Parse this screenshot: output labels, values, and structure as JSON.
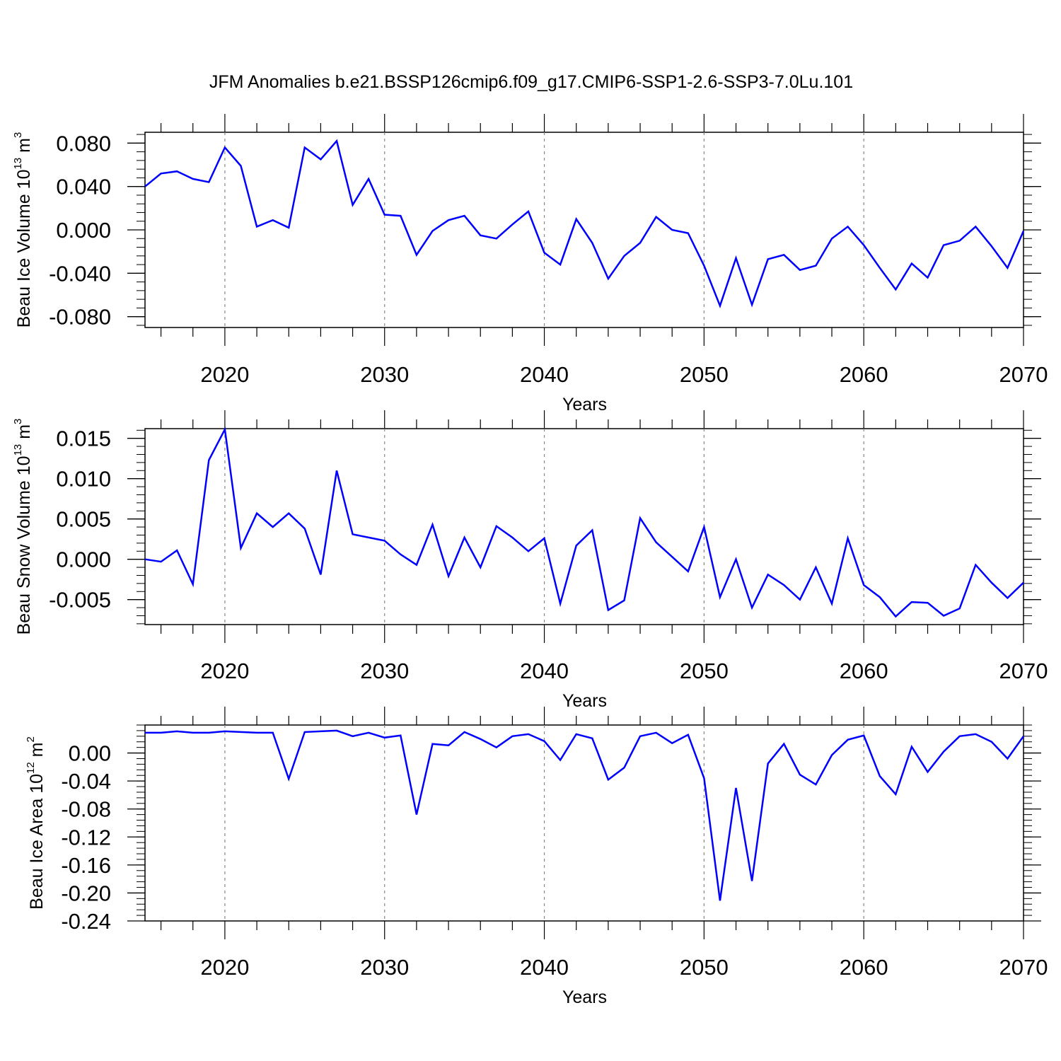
{
  "title": "JFM Anomalies b.e21.BSSP126cmip6.f09_g17.CMIP6-SSP1-2.6-SSP3-7.0Lu.101",
  "line_color": "#0000ff",
  "chart_data": [
    {
      "type": "line",
      "title": "JFM Anomalies b.e21.BSSP126cmip6.f09_g17.CMIP6-SSP1-2.6-SSP3-7.0Lu.101",
      "xlabel": "Years",
      "ylabel_main": "Beau Ice Volume 10",
      "ylabel_exp": "13",
      "ylabel_unit": " m",
      "ylabel_unit_exp": "3",
      "xlim": [
        2015,
        2070
      ],
      "ylim": [
        -0.09,
        0.09
      ],
      "x_ticks": [
        "2020",
        "2030",
        "2040",
        "2050",
        "2060",
        "2070"
      ],
      "y_ticks": [
        "0.080",
        "0.040",
        "0.000",
        "-0.040",
        "-0.080"
      ],
      "y_tick_values": [
        0.08,
        0.04,
        0.0,
        -0.04,
        -0.08
      ],
      "grid": "dashed vertical at decades",
      "series": [
        {
          "name": "Beau Ice Volume",
          "x": [
            2015,
            2016,
            2017,
            2018,
            2019,
            2020,
            2021,
            2022,
            2023,
            2024,
            2025,
            2026,
            2027,
            2028,
            2029,
            2030,
            2031,
            2032,
            2033,
            2034,
            2035,
            2036,
            2037,
            2038,
            2039,
            2040,
            2041,
            2042,
            2043,
            2044,
            2045,
            2046,
            2047,
            2048,
            2049,
            2050,
            2051,
            2052,
            2053,
            2054,
            2055,
            2056,
            2057,
            2058,
            2059,
            2060,
            2061,
            2062,
            2063,
            2064,
            2065,
            2066,
            2067,
            2068,
            2069,
            2070
          ],
          "values": [
            0.04,
            0.052,
            0.054,
            0.047,
            0.044,
            0.076,
            0.059,
            0.003,
            0.009,
            0.002,
            0.076,
            0.065,
            0.082,
            0.023,
            0.047,
            0.014,
            0.013,
            -0.023,
            -0.001,
            0.009,
            0.013,
            -0.005,
            -0.008,
            0.005,
            0.017,
            -0.021,
            -0.032,
            0.01,
            -0.012,
            -0.045,
            -0.024,
            -0.012,
            0.012,
            0.0,
            -0.003,
            -0.033,
            -0.07,
            -0.026,
            -0.069,
            -0.027,
            -0.023,
            -0.037,
            -0.033,
            -0.008,
            0.003,
            -0.014,
            -0.035,
            -0.055,
            -0.031,
            -0.044,
            -0.014,
            -0.01,
            0.003,
            -0.015,
            -0.035,
            -0.001
          ]
        }
      ]
    },
    {
      "type": "line",
      "xlabel": "Years",
      "ylabel_main": "Beau Snow Volume 10",
      "ylabel_exp": "13",
      "ylabel_unit": " m",
      "ylabel_unit_exp": "3",
      "xlim": [
        2015,
        2070
      ],
      "ylim": [
        -0.0081,
        0.0162
      ],
      "x_ticks": [
        "2020",
        "2030",
        "2040",
        "2050",
        "2060",
        "2070"
      ],
      "y_ticks": [
        "0.015",
        "0.010",
        "0.005",
        "0.000",
        "-0.005"
      ],
      "y_tick_values": [
        0.015,
        0.01,
        0.005,
        0.0,
        -0.005
      ],
      "grid": "dashed vertical at decades",
      "series": [
        {
          "name": "Beau Snow Volume",
          "x": [
            2015,
            2016,
            2017,
            2018,
            2019,
            2020,
            2021,
            2022,
            2023,
            2024,
            2025,
            2026,
            2027,
            2028,
            2029,
            2030,
            2031,
            2032,
            2033,
            2034,
            2035,
            2036,
            2037,
            2038,
            2039,
            2040,
            2041,
            2042,
            2043,
            2044,
            2045,
            2046,
            2047,
            2048,
            2049,
            2050,
            2051,
            2052,
            2053,
            2054,
            2055,
            2056,
            2057,
            2058,
            2059,
            2060,
            2061,
            2062,
            2063,
            2064,
            2065,
            2066,
            2067,
            2068,
            2069,
            2070
          ],
          "values": [
            0.0,
            -0.0003,
            0.0011,
            -0.0031,
            0.0123,
            0.0161,
            0.0014,
            0.0057,
            0.004,
            0.0057,
            0.0038,
            -0.0019,
            0.011,
            0.0031,
            0.0027,
            0.0023,
            0.0006,
            -0.0007,
            0.0043,
            -0.0021,
            0.0027,
            -0.001,
            0.0041,
            0.0027,
            0.001,
            0.0026,
            -0.0055,
            0.0017,
            0.0036,
            -0.0063,
            -0.0051,
            0.0051,
            0.0021,
            0.0003,
            -0.0015,
            0.004,
            -0.0047,
            0.0,
            -0.006,
            -0.0019,
            -0.0032,
            -0.005,
            -0.001,
            -0.0055,
            0.0026,
            -0.0032,
            -0.0047,
            -0.0071,
            -0.0053,
            -0.0054,
            -0.007,
            -0.0061,
            -0.0007,
            -0.0029,
            -0.0048,
            -0.0029
          ]
        }
      ]
    },
    {
      "type": "line",
      "xlabel": "Years",
      "ylabel_main": "Beau Ice Area 10",
      "ylabel_exp": "12",
      "ylabel_unit": " m",
      "ylabel_unit_exp": "2",
      "xlim": [
        2015,
        2070
      ],
      "ylim": [
        -0.24,
        0.04
      ],
      "x_ticks": [
        "2020",
        "2030",
        "2040",
        "2050",
        "2060",
        "2070"
      ],
      "y_ticks": [
        "0.00",
        "-0.04",
        "-0.08",
        "-0.12",
        "-0.16",
        "-0.20",
        "-0.24"
      ],
      "y_tick_values": [
        0.0,
        -0.04,
        -0.08,
        -0.12,
        -0.16,
        -0.2,
        -0.24
      ],
      "grid": "dashed vertical at decades",
      "series": [
        {
          "name": "Beau Ice Area",
          "x": [
            2015,
            2016,
            2017,
            2018,
            2019,
            2020,
            2021,
            2022,
            2023,
            2024,
            2025,
            2026,
            2027,
            2028,
            2029,
            2030,
            2031,
            2032,
            2033,
            2034,
            2035,
            2036,
            2037,
            2038,
            2039,
            2040,
            2041,
            2042,
            2043,
            2044,
            2045,
            2046,
            2047,
            2048,
            2049,
            2050,
            2051,
            2052,
            2053,
            2054,
            2055,
            2056,
            2057,
            2058,
            2059,
            2060,
            2061,
            2062,
            2063,
            2064,
            2065,
            2066,
            2067,
            2068,
            2069,
            2070
          ],
          "values": [
            0.029,
            0.029,
            0.031,
            0.029,
            0.029,
            0.031,
            0.03,
            0.029,
            0.029,
            -0.037,
            0.03,
            0.031,
            0.032,
            0.024,
            0.029,
            0.022,
            0.025,
            -0.088,
            0.013,
            0.011,
            0.03,
            0.02,
            0.008,
            0.024,
            0.027,
            0.017,
            -0.01,
            0.027,
            0.021,
            -0.038,
            -0.021,
            0.024,
            0.029,
            0.014,
            0.026,
            -0.036,
            -0.211,
            -0.05,
            -0.183,
            -0.015,
            0.013,
            -0.031,
            -0.045,
            -0.003,
            0.019,
            0.025,
            -0.033,
            -0.059,
            0.009,
            -0.027,
            0.002,
            0.024,
            0.027,
            0.016,
            -0.008,
            0.024
          ]
        }
      ]
    }
  ]
}
